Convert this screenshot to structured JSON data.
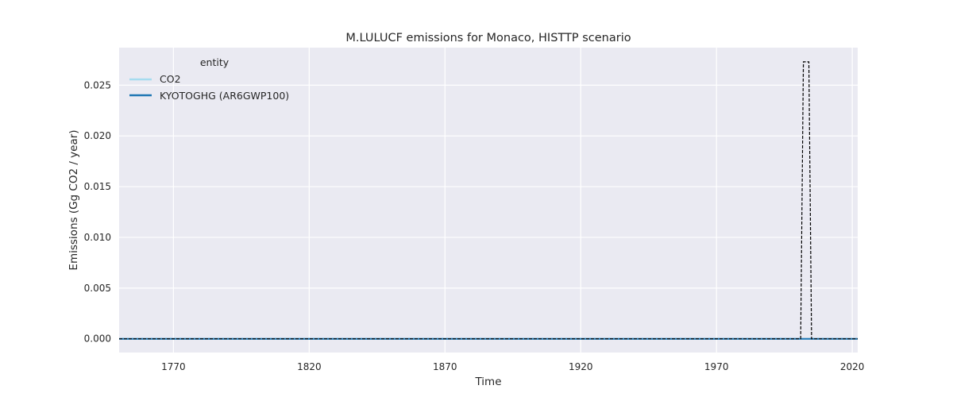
{
  "chart_data": {
    "type": "line",
    "title": "M.LULUCF emissions for Monaco, HISTTP scenario",
    "xlabel": "Time",
    "ylabel": "Emissions (Gg CO2 / year)",
    "xlim": [
      1750,
      2022
    ],
    "ylim": [
      -0.00135,
      0.0287
    ],
    "x_ticks": [
      1770,
      1820,
      1870,
      1920,
      1970,
      2020
    ],
    "y_ticks": [
      0.0,
      0.005,
      0.01,
      0.015,
      0.02,
      0.025
    ],
    "y_tick_labels": [
      "0.000",
      "0.005",
      "0.010",
      "0.015",
      "0.020",
      "0.025"
    ],
    "grid": true,
    "legend": {
      "title": "entity",
      "placement": "top-left",
      "entries": [
        {
          "label": "CO2",
          "color": "#a6dcef"
        },
        {
          "label": "KYOTOGHG (AR6GWP100)",
          "color": "#1f77b4"
        }
      ]
    },
    "series": [
      {
        "name": "CO2",
        "color": "#a6dcef",
        "style": "solid",
        "x": [
          1750,
          2022
        ],
        "y": [
          0,
          0
        ]
      },
      {
        "name": "KYOTOGHG (AR6GWP100)",
        "color": "#1f77b4",
        "style": "solid",
        "x": [
          1750,
          2022
        ],
        "y": [
          0,
          0
        ]
      },
      {
        "color": "#000000",
        "style": "dashed",
        "x": [
          1750,
          2001,
          2002,
          2004,
          2005,
          2022
        ],
        "y": [
          0,
          0,
          0.0273,
          0.0273,
          0,
          0
        ]
      }
    ],
    "colors": {
      "background": "#eaeaf2",
      "grid": "#ffffff"
    }
  }
}
